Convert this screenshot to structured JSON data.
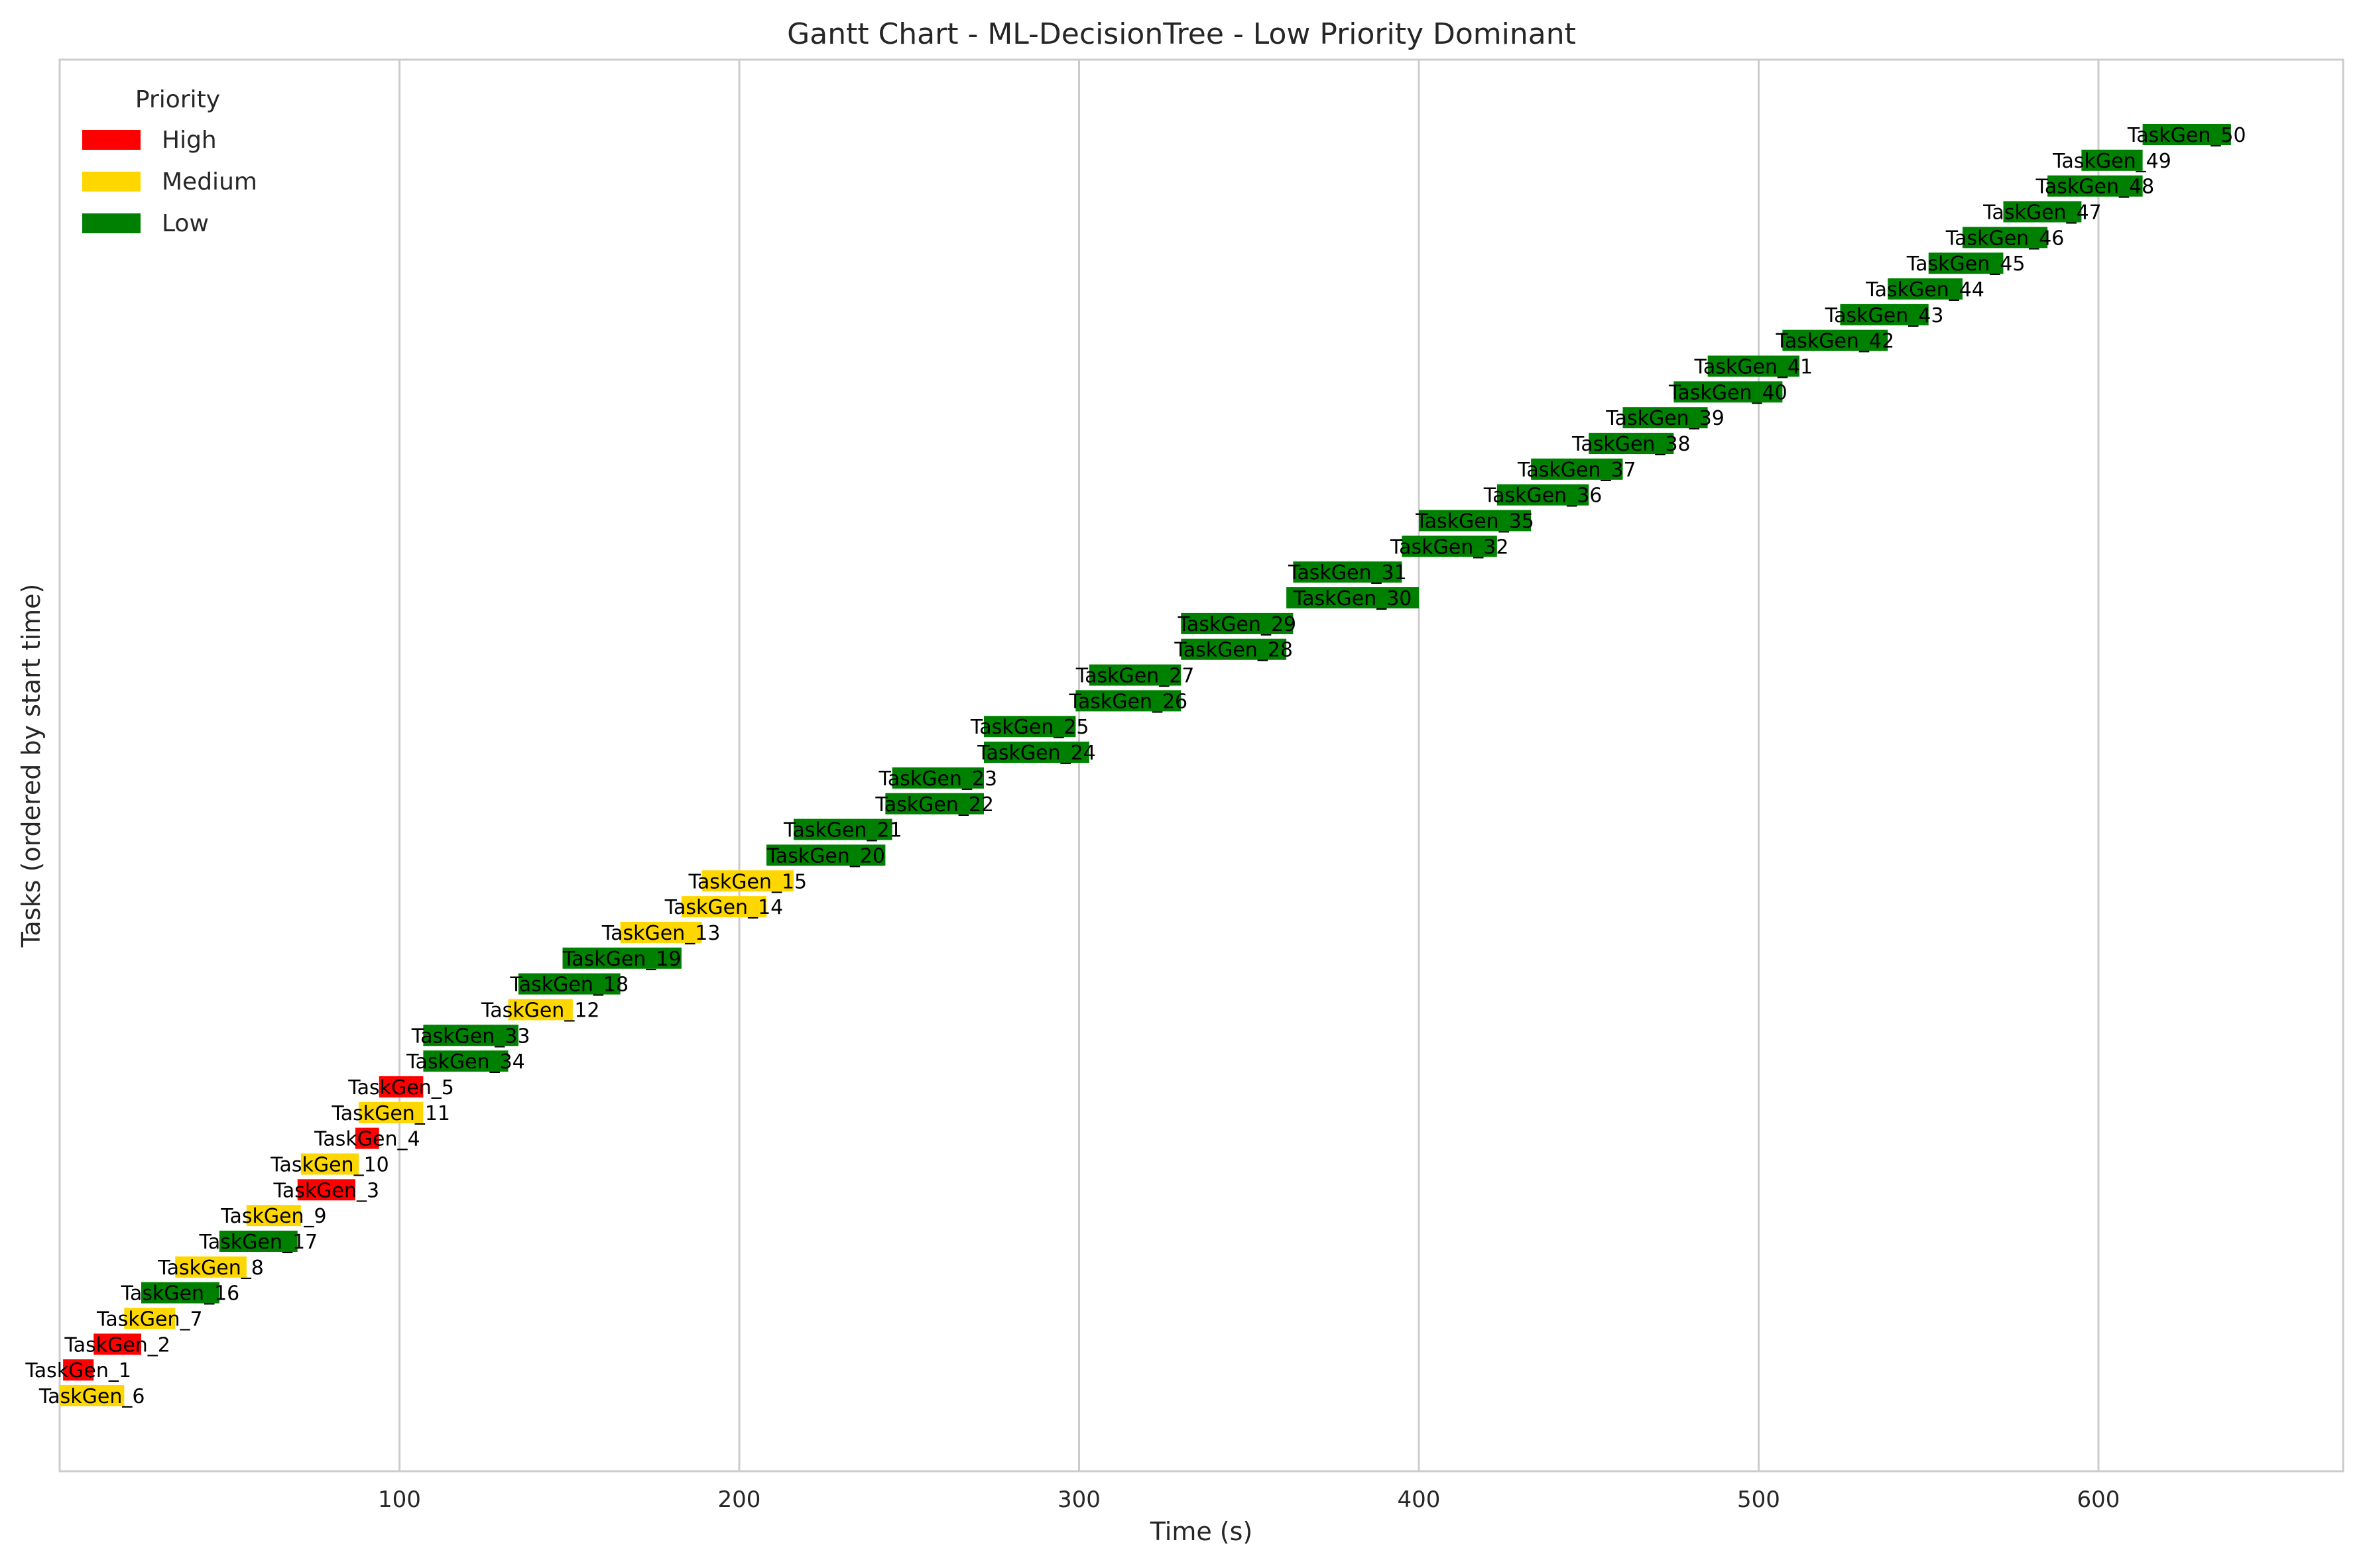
{
  "chart_data": {
    "type": "gantt",
    "title": "Gantt Chart - ML-DecisionTree - Low Priority Dominant",
    "xlabel": "Time (s)",
    "ylabel": "Tasks (ordered by start time)",
    "xlim": [
      0,
      672
    ],
    "xticks": [
      100,
      200,
      300,
      400,
      500,
      600
    ],
    "grid": "vertical",
    "legend": {
      "title": "Priority",
      "placement": "top-left",
      "entries": [
        {
          "label": "High",
          "color": "#ff0000"
        },
        {
          "label": "Medium",
          "color": "#ffd700"
        },
        {
          "label": "Low",
          "color": "#008000"
        }
      ]
    },
    "priority_colors": {
      "High": "#ff0000",
      "Medium": "#ffd700",
      "Low": "#008000"
    },
    "tasks": [
      {
        "name": "TaskGen_6",
        "start": 0,
        "end": 19,
        "priority": "Medium"
      },
      {
        "name": "TaskGen_1",
        "start": 1,
        "end": 10,
        "priority": "High"
      },
      {
        "name": "TaskGen_2",
        "start": 10,
        "end": 24,
        "priority": "High"
      },
      {
        "name": "TaskGen_7",
        "start": 19,
        "end": 34,
        "priority": "Medium"
      },
      {
        "name": "TaskGen_16",
        "start": 24,
        "end": 47,
        "priority": "Low"
      },
      {
        "name": "TaskGen_8",
        "start": 34,
        "end": 55,
        "priority": "Medium"
      },
      {
        "name": "TaskGen_17",
        "start": 47,
        "end": 70,
        "priority": "Low"
      },
      {
        "name": "TaskGen_9",
        "start": 55,
        "end": 71,
        "priority": "Medium"
      },
      {
        "name": "TaskGen_3",
        "start": 70,
        "end": 87,
        "priority": "High"
      },
      {
        "name": "TaskGen_10",
        "start": 71,
        "end": 88,
        "priority": "Medium"
      },
      {
        "name": "TaskGen_4",
        "start": 87,
        "end": 94,
        "priority": "High"
      },
      {
        "name": "TaskGen_11",
        "start": 88,
        "end": 107,
        "priority": "Medium"
      },
      {
        "name": "TaskGen_5",
        "start": 94,
        "end": 107,
        "priority": "High"
      },
      {
        "name": "TaskGen_34",
        "start": 107,
        "end": 132,
        "priority": "Low"
      },
      {
        "name": "TaskGen_33",
        "start": 107,
        "end": 135,
        "priority": "Low"
      },
      {
        "name": "TaskGen_12",
        "start": 132,
        "end": 151,
        "priority": "Medium"
      },
      {
        "name": "TaskGen_18",
        "start": 135,
        "end": 165,
        "priority": "Low"
      },
      {
        "name": "TaskGen_19",
        "start": 148,
        "end": 183,
        "priority": "Low"
      },
      {
        "name": "TaskGen_13",
        "start": 165,
        "end": 189,
        "priority": "Medium"
      },
      {
        "name": "TaskGen_14",
        "start": 183,
        "end": 208,
        "priority": "Medium"
      },
      {
        "name": "TaskGen_15",
        "start": 189,
        "end": 216,
        "priority": "Medium"
      },
      {
        "name": "TaskGen_20",
        "start": 208,
        "end": 243,
        "priority": "Low"
      },
      {
        "name": "TaskGen_21",
        "start": 216,
        "end": 245,
        "priority": "Low"
      },
      {
        "name": "TaskGen_22",
        "start": 243,
        "end": 272,
        "priority": "Low"
      },
      {
        "name": "TaskGen_23",
        "start": 245,
        "end": 272,
        "priority": "Low"
      },
      {
        "name": "TaskGen_24",
        "start": 272,
        "end": 303,
        "priority": "Low"
      },
      {
        "name": "TaskGen_25",
        "start": 272,
        "end": 299,
        "priority": "Low"
      },
      {
        "name": "TaskGen_26",
        "start": 299,
        "end": 330,
        "priority": "Low"
      },
      {
        "name": "TaskGen_27",
        "start": 303,
        "end": 330,
        "priority": "Low"
      },
      {
        "name": "TaskGen_28",
        "start": 330,
        "end": 361,
        "priority": "Low"
      },
      {
        "name": "TaskGen_29",
        "start": 330,
        "end": 363,
        "priority": "Low"
      },
      {
        "name": "TaskGen_30",
        "start": 361,
        "end": 400,
        "priority": "Low"
      },
      {
        "name": "TaskGen_31",
        "start": 363,
        "end": 395,
        "priority": "Low"
      },
      {
        "name": "TaskGen_32",
        "start": 395,
        "end": 423,
        "priority": "Low"
      },
      {
        "name": "TaskGen_35",
        "start": 400,
        "end": 433,
        "priority": "Low"
      },
      {
        "name": "TaskGen_36",
        "start": 423,
        "end": 450,
        "priority": "Low"
      },
      {
        "name": "TaskGen_37",
        "start": 433,
        "end": 460,
        "priority": "Low"
      },
      {
        "name": "TaskGen_38",
        "start": 450,
        "end": 475,
        "priority": "Low"
      },
      {
        "name": "TaskGen_39",
        "start": 460,
        "end": 485,
        "priority": "Low"
      },
      {
        "name": "TaskGen_40",
        "start": 475,
        "end": 507,
        "priority": "Low"
      },
      {
        "name": "TaskGen_41",
        "start": 485,
        "end": 512,
        "priority": "Low"
      },
      {
        "name": "TaskGen_42",
        "start": 507,
        "end": 538,
        "priority": "Low"
      },
      {
        "name": "TaskGen_43",
        "start": 524,
        "end": 550,
        "priority": "Low"
      },
      {
        "name": "TaskGen_44",
        "start": 538,
        "end": 560,
        "priority": "Low"
      },
      {
        "name": "TaskGen_45",
        "start": 550,
        "end": 572,
        "priority": "Low"
      },
      {
        "name": "TaskGen_46",
        "start": 560,
        "end": 585,
        "priority": "Low"
      },
      {
        "name": "TaskGen_47",
        "start": 572,
        "end": 595,
        "priority": "Low"
      },
      {
        "name": "TaskGen_48",
        "start": 585,
        "end": 613,
        "priority": "Low"
      },
      {
        "name": "TaskGen_49",
        "start": 595,
        "end": 613,
        "priority": "Low"
      },
      {
        "name": "TaskGen_50",
        "start": 613,
        "end": 639,
        "priority": "Low"
      }
    ]
  }
}
